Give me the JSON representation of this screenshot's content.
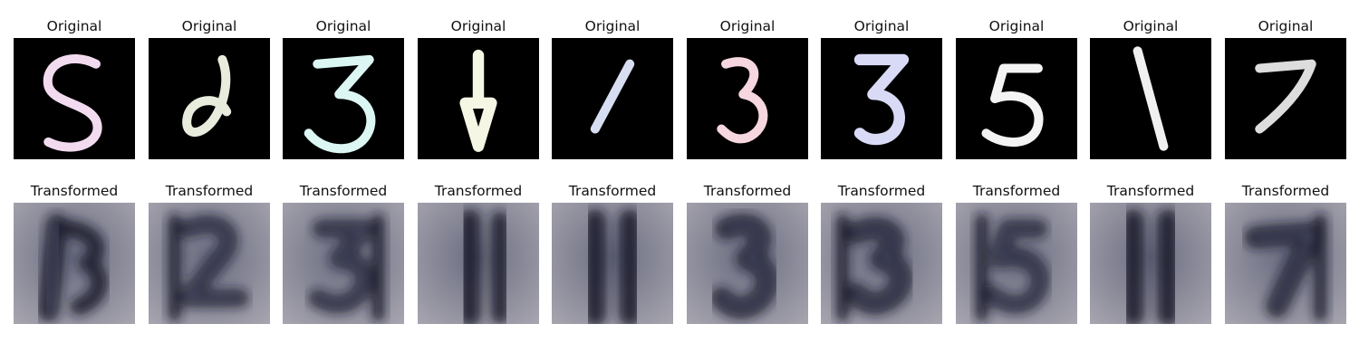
{
  "rows": [
    {
      "kind": "original",
      "cells": [
        {
          "title": "Original",
          "digit": "S",
          "color": "#f3dbef"
        },
        {
          "title": "Original",
          "digit": "∂",
          "color": "#e8ecdd"
        },
        {
          "title": "Original",
          "digit": "3",
          "color": "#dcf7f3"
        },
        {
          "title": "Original",
          "digit": "1",
          "color": "#f5f7e4"
        },
        {
          "title": "Original",
          "digit": "/",
          "color": "#d8def2"
        },
        {
          "title": "Original",
          "digit": "3",
          "color": "#f6d6df"
        },
        {
          "title": "Original",
          "digit": "3",
          "color": "#d8daf6"
        },
        {
          "title": "Original",
          "digit": "5",
          "color": "#f4f4f4"
        },
        {
          "title": "Original",
          "digit": "\\",
          "color": "#f0f0f0"
        },
        {
          "title": "Original",
          "digit": "7",
          "color": "#dddddd"
        }
      ]
    },
    {
      "kind": "transformed",
      "cells": [
        {
          "title": "Transformed",
          "digit": "5"
        },
        {
          "title": "Transformed",
          "digit": "2"
        },
        {
          "title": "Transformed",
          "digit": "3"
        },
        {
          "title": "Transformed",
          "digit": "1"
        },
        {
          "title": "Transformed",
          "digit": "1"
        },
        {
          "title": "Transformed",
          "digit": "3"
        },
        {
          "title": "Transformed",
          "digit": "3"
        },
        {
          "title": "Transformed",
          "digit": "5"
        },
        {
          "title": "Transformed",
          "digit": "1"
        },
        {
          "title": "Transformed",
          "digit": "7"
        }
      ]
    }
  ],
  "colors": {
    "original_background": "#000000",
    "transformed_background": "#8a8a98",
    "transformed_stroke": "#141828"
  }
}
